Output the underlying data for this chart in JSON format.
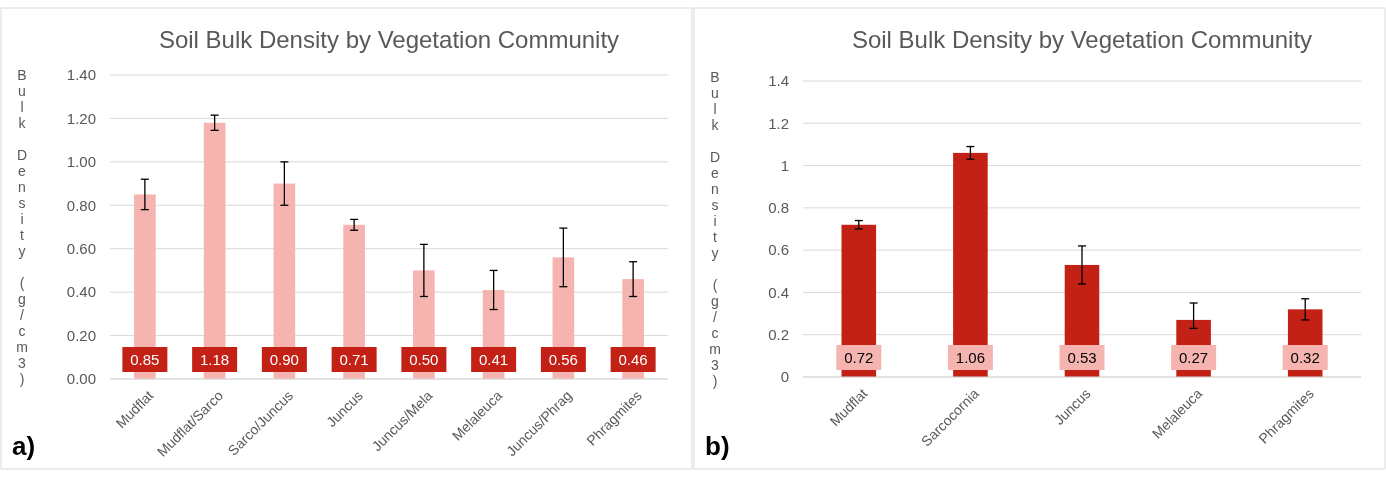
{
  "chart_data": [
    {
      "type": "bar",
      "title": "Soil Bulk Density by Vegetation Community",
      "ylabel": "Bulk Density (g/cm3)",
      "annotations": [
        "a)"
      ],
      "categories": [
        "Mudflat",
        "Mudflat/Sarco",
        "Sarco/Juncus",
        "Juncus",
        "Juncus/Mela",
        "Melaleuca",
        "Juncus/Phrag",
        "Phragmites"
      ],
      "values": [
        0.85,
        1.18,
        0.9,
        0.71,
        0.5,
        0.41,
        0.56,
        0.46
      ],
      "errors": [
        0.07,
        0.035,
        0.1,
        0.025,
        0.12,
        0.09,
        0.135,
        0.08
      ],
      "value_labels": [
        "0.85",
        "1.18",
        "0.90",
        "0.71",
        "0.50",
        "0.41",
        "0.56",
        "0.46"
      ],
      "color": "#f5b4b0",
      "ylim": [
        0,
        1.4
      ],
      "yticks": [
        {
          "value": 0,
          "label": "0.00"
        },
        {
          "value": 0.2,
          "label": "0.20"
        },
        {
          "value": 0.4,
          "label": "0.40"
        },
        {
          "value": 0.6,
          "label": "0.60"
        },
        {
          "value": 0.8,
          "label": "0.80"
        },
        {
          "value": 1,
          "label": "1.00"
        },
        {
          "value": 1.2,
          "label": "1.20"
        },
        {
          "value": 1.4,
          "label": "1.40"
        }
      ],
      "grid": "y"
    },
    {
      "type": "bar",
      "title": "Soil Bulk Density by Vegetation Community",
      "ylabel": "Bulk Density (g/cm3)",
      "annotations": [
        "b)"
      ],
      "categories": [
        "Mudflat",
        "Sarcocornia",
        "Juncus",
        "Melaleuca",
        "Phragmites"
      ],
      "values": [
        0.72,
        1.06,
        0.53,
        0.27,
        0.32
      ],
      "errors": [
        0.02,
        0.03,
        0.09,
        [
          0.23,
          0.35
        ],
        0.05
      ],
      "color": "#c42116",
      "ylim": [
        0,
        1.4
      ],
      "yticks": [
        0,
        0.2,
        0.4,
        0.6,
        0.8,
        1,
        1.2,
        1.4
      ],
      "grid": "y",
      "data_labels": true
    }
  ]
}
